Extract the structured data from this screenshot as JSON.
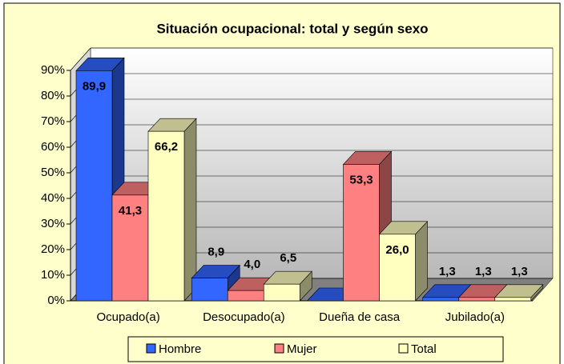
{
  "chart_data": {
    "type": "bar3d",
    "title": "Situación ocupacional: total y según sexo",
    "categories": [
      "Ocupado(a)",
      "Desocupado(a)",
      "Dueña de casa",
      "Jubilado(a)"
    ],
    "series": [
      {
        "name": "Hombre",
        "color": "#3366ff",
        "values": [
          89.9,
          8.9,
          0,
          1.3
        ],
        "value_labels": [
          "89,9",
          "8,9",
          null,
          "1,3"
        ]
      },
      {
        "name": "Mujer",
        "color": "#ff8080",
        "values": [
          41.3,
          4.0,
          53.3,
          1.3
        ],
        "value_labels": [
          "41,3",
          "4,0",
          "53,3",
          "1,3"
        ]
      },
      {
        "name": "Total",
        "color": "#ffffc0",
        "values": [
          66.2,
          6.5,
          26.0,
          1.3
        ],
        "value_labels": [
          "66,2",
          "6,5",
          "26,0",
          "1,3"
        ]
      }
    ],
    "ylim": [
      0,
      90
    ],
    "yticks": [
      {
        "value": 0,
        "label": "0%"
      },
      {
        "value": 10,
        "label": "10%"
      },
      {
        "value": 20,
        "label": "20%"
      },
      {
        "value": 30,
        "label": "30%"
      },
      {
        "value": 40,
        "label": "40%"
      },
      {
        "value": 50,
        "label": "50%"
      },
      {
        "value": 60,
        "label": "60%"
      },
      {
        "value": 70,
        "label": "70%"
      },
      {
        "value": 80,
        "label": "80%"
      },
      {
        "value": 90,
        "label": "90%"
      }
    ],
    "grid": true,
    "legend": "bottom"
  }
}
